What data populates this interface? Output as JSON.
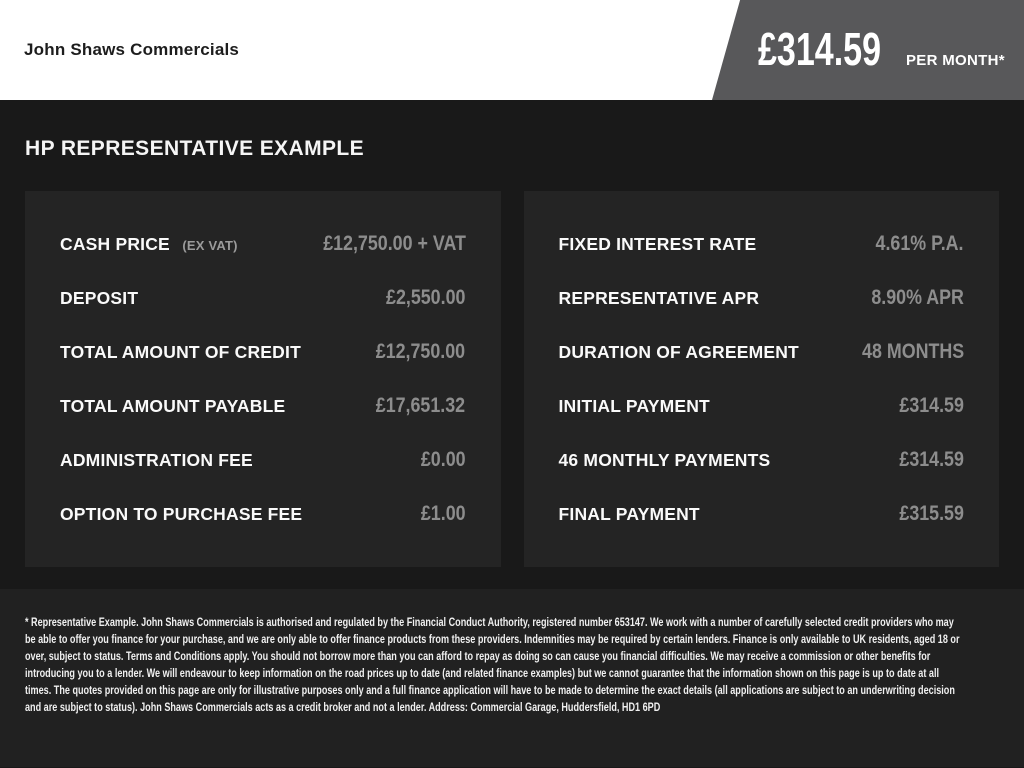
{
  "header": {
    "dealer_name": "John Shaws Commercials",
    "price_badge": {
      "amount": "£314.59",
      "period": "PER MONTH*"
    }
  },
  "section_title": "HP REPRESENTATIVE EXAMPLE",
  "panels": {
    "left": {
      "rows": [
        {
          "label": "CASH PRICE",
          "sublabel": "(EX VAT)",
          "value": "£12,750.00 + VAT"
        },
        {
          "label": "DEPOSIT",
          "sublabel": "",
          "value": "£2,550.00"
        },
        {
          "label": "TOTAL AMOUNT OF CREDIT",
          "sublabel": "",
          "value": "£12,750.00"
        },
        {
          "label": "TOTAL AMOUNT PAYABLE",
          "sublabel": "",
          "value": "£17,651.32"
        },
        {
          "label": "ADMINISTRATION FEE",
          "sublabel": "",
          "value": "£0.00"
        },
        {
          "label": "OPTION TO PURCHASE FEE",
          "sublabel": "",
          "value": "£1.00"
        }
      ]
    },
    "right": {
      "rows": [
        {
          "label": "FIXED INTEREST RATE",
          "sublabel": "",
          "value": "4.61% P.A."
        },
        {
          "label": "REPRESENTATIVE APR",
          "sublabel": "",
          "value": "8.90% APR"
        },
        {
          "label": "DURATION OF AGREEMENT",
          "sublabel": "",
          "value": "48 MONTHS"
        },
        {
          "label": "INITIAL PAYMENT",
          "sublabel": "",
          "value": "£314.59"
        },
        {
          "label": "46 MONTHLY PAYMENTS",
          "sublabel": "",
          "value": "£314.59"
        },
        {
          "label": "FINAL PAYMENT",
          "sublabel": "",
          "value": "£315.59"
        }
      ]
    }
  },
  "footer": {
    "disclaimer": "* Representative Example. John Shaws Commercials is authorised and regulated by the Financial Conduct Authority, registered number 653147. We work with a number of carefully selected credit providers who may be able to offer you finance for your purchase, and we are only able to offer finance products from these providers. Indemnities may be required by certain lenders. Finance is only available to UK residents, aged 18 or over, subject to status. Terms and Conditions apply. You should not borrow more than you can afford to repay as doing so can cause you financial difficulties. We may receive a commission or other benefits for introducing you to a lender. We will endeavour to keep information on the road prices up to date (and related finance examples) but we cannot guarantee that the information shown on this page is up to date at all times. The quotes provided on this page are only for illustrative purposes only and a full finance application will have to be made to determine the exact details (all applications are subject to an underwriting decision and are subject to status). John Shaws Commercials acts as a credit broker and not a lender. Address: Commercial Garage, Huddersfield, HD1 6PD"
  },
  "colors": {
    "header_bg": "#ffffff",
    "header_text": "#1d1d1d",
    "badge_bg": "#58585a",
    "page_bg": "#191919",
    "panel_bg": "#242424",
    "footer_bg": "#212121",
    "label_text": "#fafafa",
    "value_text": "#8d8d8d",
    "sublabel_text": "#9b9b9b"
  }
}
